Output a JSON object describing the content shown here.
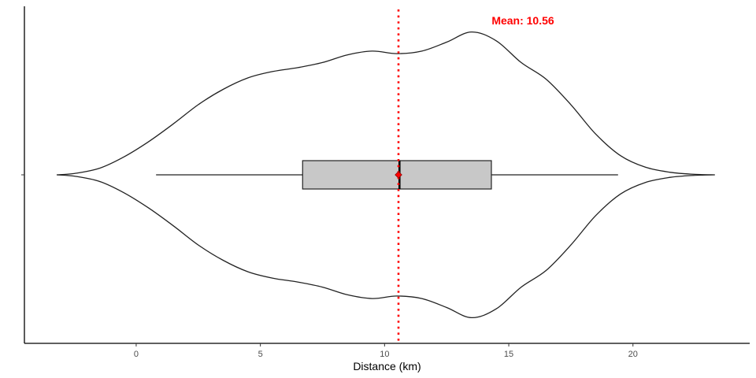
{
  "chart_data": {
    "type": "violin",
    "title": "",
    "xlabel": "Distance (km)",
    "ylabel": "",
    "xlim": [
      -4.5,
      24.7
    ],
    "x_ticks": [
      0,
      5,
      10,
      15,
      20
    ],
    "grid": false,
    "orientation": "horizontal",
    "violin": {
      "profile": [
        [
          -3.2,
          0.0
        ],
        [
          -2.5,
          0.01
        ],
        [
          -1.5,
          0.05
        ],
        [
          -0.5,
          0.14
        ],
        [
          0.5,
          0.26
        ],
        [
          1.5,
          0.4
        ],
        [
          2.5,
          0.55
        ],
        [
          3.5,
          0.67
        ],
        [
          4.5,
          0.76
        ],
        [
          5.5,
          0.81
        ],
        [
          6.5,
          0.84
        ],
        [
          7.5,
          0.88
        ],
        [
          8.5,
          0.94
        ],
        [
          9.5,
          0.97
        ],
        [
          10.5,
          0.95
        ],
        [
          11.5,
          0.97
        ],
        [
          12.5,
          1.04
        ],
        [
          13.5,
          1.12
        ],
        [
          14.5,
          1.05
        ],
        [
          15.5,
          0.88
        ],
        [
          16.5,
          0.75
        ],
        [
          17.5,
          0.55
        ],
        [
          18.5,
          0.32
        ],
        [
          19.5,
          0.15
        ],
        [
          20.5,
          0.06
        ],
        [
          21.5,
          0.02
        ],
        [
          22.5,
          0.004
        ],
        [
          23.3,
          0.0
        ]
      ]
    },
    "boxplot": {
      "whisker_low": 0.8,
      "q1": 6.7,
      "median": 10.6,
      "q3": 14.3,
      "whisker_high": 19.4,
      "fill": "#c8c8c8"
    },
    "mean": {
      "value": 10.56,
      "label": "Mean: 10.56",
      "color": "#ff0000"
    }
  }
}
